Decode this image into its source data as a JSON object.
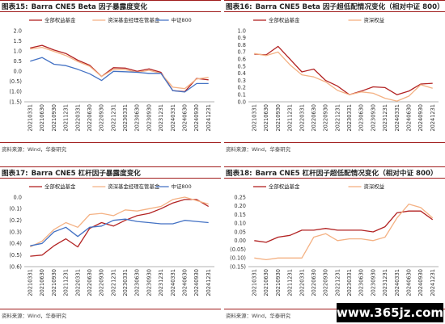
{
  "source_text": "资料来源：Wind，华泰研究",
  "watermark": "www.365jz.com",
  "colors": {
    "red": "#b22222",
    "orange": "#f4b183",
    "blue": "#4472c4"
  },
  "panels": [
    {
      "label": "图表15:",
      "title": "Barra CNE5 Beta 因子暴露度变化"
    },
    {
      "label": "图表16:",
      "title": "Barra CNE5 Beta 因子超低配情况变化（相对中证 800）"
    },
    {
      "label": "图表17:",
      "title": "Barra CNE5 杠杆因子暴露度变化"
    },
    {
      "label": "图表18:",
      "title": "Barra CNE5 杠杆因子超低配情况变化（相对中证 800）"
    }
  ],
  "chart_data": [
    {
      "type": "line",
      "categories": [
        "20210331",
        "20210630",
        "20210930",
        "20211231",
        "20220331",
        "20220630",
        "20220930",
        "20221231",
        "20230331",
        "20230630",
        "20230930",
        "20231231",
        "20240331",
        "20240630",
        "20240930",
        "20241231"
      ],
      "ylim": [
        -1.5,
        2.0
      ],
      "yticks": [
        -1.5,
        -1.0,
        -0.5,
        0.0,
        0.5,
        1.0,
        1.5,
        2.0
      ],
      "yticklabels": [
        "(1.5)",
        "(1.0)",
        "(0.5)",
        "0.0",
        "0.5",
        "1.0",
        "1.5",
        "2.0"
      ],
      "legend_position": "top",
      "series": [
        {
          "name": "全部权益基金",
          "color": "#b22222",
          "values": [
            1.15,
            1.28,
            1.05,
            0.88,
            0.55,
            0.3,
            -0.25,
            0.18,
            0.16,
            0.0,
            0.12,
            -0.05,
            -0.95,
            -1.0,
            -0.35,
            -0.42
          ]
        },
        {
          "name": "资深基金经理在管基金",
          "color": "#f4b183",
          "values": [
            1.1,
            1.18,
            0.98,
            0.78,
            0.48,
            0.25,
            -0.25,
            0.1,
            0.08,
            -0.05,
            0.05,
            -0.1,
            -0.78,
            -0.85,
            -0.38,
            -0.3
          ]
        },
        {
          "name": "中证800",
          "color": "#4472c4",
          "values": [
            0.5,
            0.68,
            0.35,
            0.28,
            0.1,
            -0.12,
            -0.45,
            0.0,
            -0.02,
            -0.05,
            -0.1,
            -0.1,
            -0.95,
            -1.02,
            -0.6,
            -0.6
          ]
        }
      ]
    },
    {
      "type": "line",
      "categories": [
        "20210331",
        "20210630",
        "20210930",
        "20211231",
        "20220331",
        "20220630",
        "20220930",
        "20221231",
        "20230331",
        "20230630",
        "20230930",
        "20231231",
        "20240331",
        "20240630",
        "20240930",
        "20241231"
      ],
      "ylim": [
        0.0,
        1.0
      ],
      "yticks": [
        0.0,
        0.1,
        0.2,
        0.3,
        0.4,
        0.5,
        0.6,
        0.7,
        0.8,
        0.9,
        1.0
      ],
      "yticklabels": [
        "0.0",
        "0.1",
        "0.2",
        "0.3",
        "0.4",
        "0.5",
        "0.6",
        "0.7",
        "0.8",
        "0.9",
        "1.0"
      ],
      "legend_position": "top",
      "series": [
        {
          "name": "全部权益基金",
          "color": "#b22222",
          "values": [
            0.67,
            0.66,
            0.78,
            0.6,
            0.42,
            0.46,
            0.3,
            0.22,
            0.1,
            0.15,
            0.21,
            0.2,
            0.1,
            0.15,
            0.25,
            0.26
          ]
        },
        {
          "name": "资深权益",
          "color": "#f4b183",
          "values": [
            0.68,
            0.65,
            0.7,
            0.52,
            0.38,
            0.35,
            0.28,
            0.16,
            0.1,
            0.14,
            0.12,
            0.05,
            0.01,
            0.08,
            0.24,
            0.19
          ]
        }
      ]
    },
    {
      "type": "line",
      "categories": [
        "20210331",
        "20210630",
        "20210930",
        "20211231",
        "20220331",
        "20220630",
        "20220930",
        "20221231",
        "20230331",
        "20230630",
        "20230930",
        "20231231",
        "20240331",
        "20240630",
        "20240930",
        "20241231"
      ],
      "ylim": [
        -0.6,
        0.0
      ],
      "yticks": [
        -0.6,
        -0.5,
        -0.4,
        -0.3,
        -0.2,
        -0.1,
        0.0
      ],
      "yticklabels": [
        "(0.6)",
        "(0.5)",
        "(0.4)",
        "(0.3)",
        "(0.2)",
        "(0.1)",
        "0.0"
      ],
      "legend_position": "top",
      "series": [
        {
          "name": "全部权益基金",
          "color": "#b22222",
          "values": [
            -0.51,
            -0.5,
            -0.42,
            -0.36,
            -0.43,
            -0.27,
            -0.22,
            -0.25,
            -0.2,
            -0.16,
            -0.14,
            -0.1,
            -0.05,
            -0.02,
            -0.02,
            -0.08
          ]
        },
        {
          "name": "资深基金经理在管基金",
          "color": "#f4b183",
          "values": [
            -0.43,
            -0.38,
            -0.28,
            -0.22,
            -0.26,
            -0.15,
            -0.14,
            -0.16,
            -0.11,
            -0.12,
            -0.1,
            -0.08,
            -0.02,
            0.0,
            -0.03,
            -0.06
          ]
        },
        {
          "name": "中证800",
          "color": "#4472c4",
          "values": [
            -0.42,
            -0.4,
            -0.3,
            -0.26,
            -0.34,
            -0.26,
            -0.25,
            -0.2,
            -0.19,
            -0.21,
            -0.22,
            -0.23,
            -0.23,
            -0.2,
            -0.21,
            -0.22
          ]
        }
      ]
    },
    {
      "type": "line",
      "categories": [
        "20210331",
        "20210630",
        "20210930",
        "20211231",
        "20220331",
        "20220630",
        "20220930",
        "20221231",
        "20230331",
        "20230630",
        "20230930",
        "20231231",
        "20240331",
        "20240630",
        "20240930",
        "20241231"
      ],
      "ylim": [
        -0.15,
        0.25
      ],
      "yticks": [
        -0.15,
        -0.1,
        -0.05,
        0.0,
        0.05,
        0.1,
        0.15,
        0.2,
        0.25
      ],
      "yticklabels": [
        "(0.15)",
        "(0.10)",
        "(0.05)",
        "0.00",
        "0.05",
        "0.10",
        "0.15",
        "0.20",
        "0.25"
      ],
      "legend_position": "top",
      "series": [
        {
          "name": "全部权益基金",
          "color": "#b22222",
          "values": [
            0.0,
            -0.01,
            0.02,
            0.03,
            0.06,
            0.06,
            0.07,
            0.06,
            0.06,
            0.06,
            0.05,
            0.08,
            0.16,
            0.17,
            0.17,
            0.12
          ]
        },
        {
          "name": "资深权益",
          "color": "#f4b183",
          "values": [
            -0.1,
            -0.11,
            -0.1,
            -0.1,
            -0.1,
            0.02,
            0.04,
            0.0,
            0.01,
            0.01,
            0.0,
            0.02,
            0.13,
            0.21,
            0.19,
            0.13
          ]
        }
      ]
    }
  ]
}
